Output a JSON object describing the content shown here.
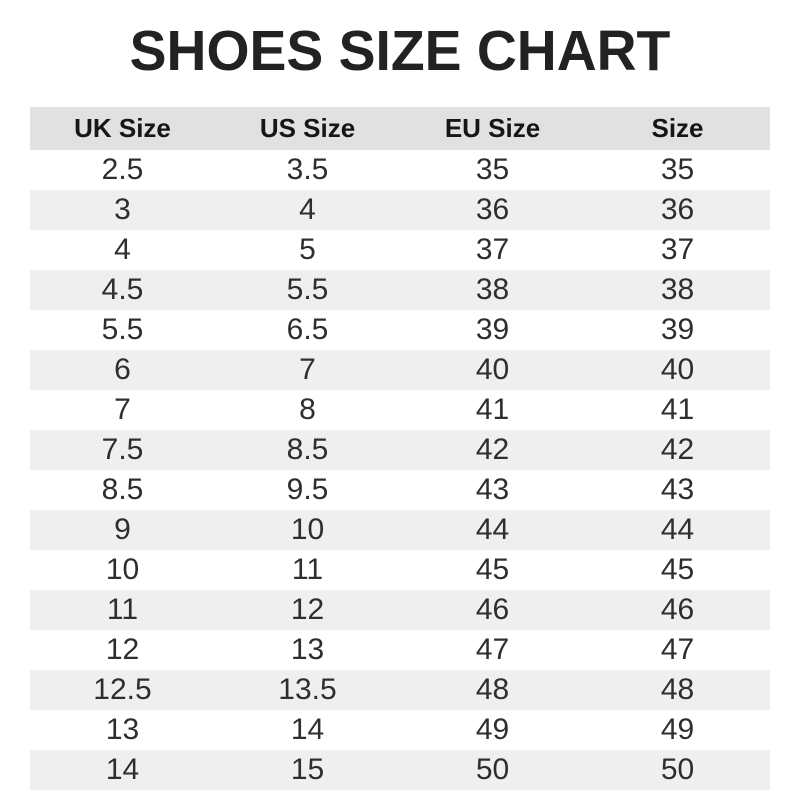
{
  "title": "SHOES SIZE CHART",
  "chart_data": {
    "type": "table",
    "columns": [
      "UK Size",
      "US Size",
      "EU Size",
      "Size"
    ],
    "rows": [
      [
        "2.5",
        "3.5",
        "35",
        "35"
      ],
      [
        "3",
        "4",
        "36",
        "36"
      ],
      [
        "4",
        "5",
        "37",
        "37"
      ],
      [
        "4.5",
        "5.5",
        "38",
        "38"
      ],
      [
        "5.5",
        "6.5",
        "39",
        "39"
      ],
      [
        "6",
        "7",
        "40",
        "40"
      ],
      [
        "7",
        "8",
        "41",
        "41"
      ],
      [
        "7.5",
        "8.5",
        "42",
        "42"
      ],
      [
        "8.5",
        "9.5",
        "43",
        "43"
      ],
      [
        "9",
        "10",
        "44",
        "44"
      ],
      [
        "10",
        "11",
        "45",
        "45"
      ],
      [
        "11",
        "12",
        "46",
        "46"
      ],
      [
        "12",
        "13",
        "47",
        "47"
      ],
      [
        "12.5",
        "13.5",
        "48",
        "48"
      ],
      [
        "13",
        "14",
        "49",
        "49"
      ],
      [
        "14",
        "15",
        "50",
        "50"
      ]
    ],
    "layout": {
      "header_background": "#e2e1e1",
      "alt_row_background": "#f0eff0",
      "row_background": "#ffffff",
      "title_color": "#222222",
      "text_color": "#2e2e2e"
    }
  }
}
